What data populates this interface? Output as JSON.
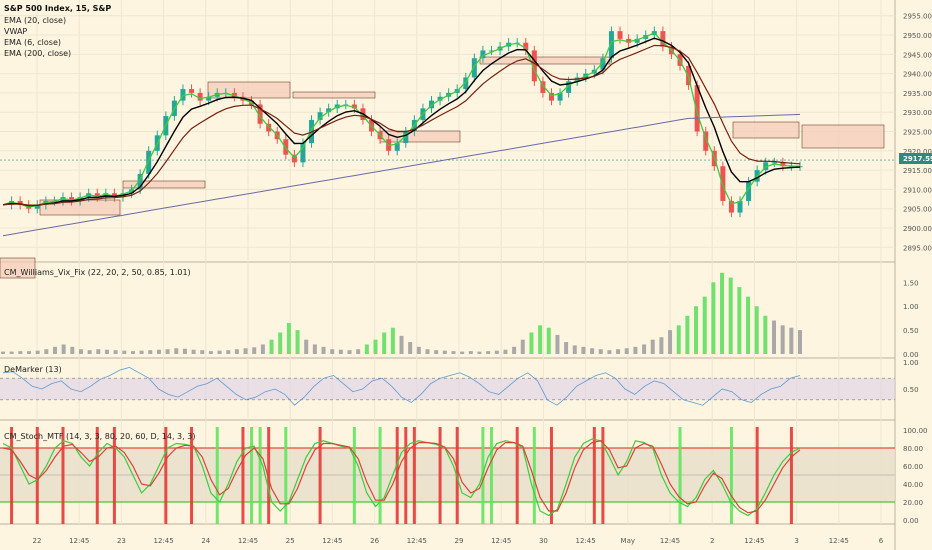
{
  "chart_title": "S&P 500 Index, 15, S&P",
  "price_panel": {
    "indicators": [
      "EMA (20, close)",
      "VWAP",
      "EMA (6, close)",
      "EMA (200, close)"
    ],
    "current_price_label": "2917.59",
    "y_ticks": [
      "2955.00",
      "2950.00",
      "2945.00",
      "2940.00",
      "2935.00",
      "2930.00",
      "2925.00",
      "2920.00",
      "2915.00",
      "2910.00",
      "2905.00",
      "2900.00",
      "2895.00"
    ],
    "colors": {
      "ema20": "#7a2010",
      "vwap": "#000000",
      "ema6": "#3ccc3c",
      "ema200": "#6a6aa8",
      "up": "#26a69a",
      "down": "#ef5350",
      "zone": "#f3cbb8"
    }
  },
  "vix_panel": {
    "title": "CM_Williams_Vix_Fix (22, 20, 2, 50, 0.85, 1.01)",
    "y_ticks": [
      "1.50",
      "1.00",
      "0.50",
      "0.00"
    ]
  },
  "demarker_panel": {
    "title": "DeMarker (13)",
    "y_ticks": [
      "1.00",
      "0.50"
    ]
  },
  "stoch_panel": {
    "title": "CM_Stoch_MTF (14, 3, 3, 80, 20, 60, D, 14, 3, 3)",
    "y_ticks": [
      "100.00",
      "80.00",
      "60.00",
      "40.00",
      "20.00",
      "0.00"
    ]
  },
  "x_axis_labels": [
    "22",
    "12:45",
    "23",
    "12:45",
    "24",
    "12:45",
    "25",
    "12:45",
    "26",
    "12:45",
    "29",
    "12:45",
    "30",
    "12:45",
    "May",
    "12:45",
    "2",
    "12:45",
    "3",
    "12:45",
    "6"
  ],
  "chart_data": [
    {
      "type": "candlestick",
      "title": "S&P 500 Index, 15, S&P",
      "ylim": [
        2893,
        2957
      ],
      "close_series": [
        2906,
        2907,
        2906,
        2905,
        2906,
        2907,
        2907,
        2908,
        2907,
        2908,
        2909,
        2908,
        2909,
        2908,
        2909,
        2910,
        2914,
        2920,
        2924,
        2929,
        2933,
        2936,
        2935,
        2933,
        2934,
        2935,
        2935,
        2934,
        2933,
        2932,
        2927,
        2925,
        2923,
        2919,
        2917,
        2922,
        2928,
        2930,
        2931,
        2932,
        2932,
        2931,
        2928,
        2925,
        2923,
        2920,
        2922,
        2925,
        2928,
        2931,
        2933,
        2934,
        2935,
        2936,
        2939,
        2944,
        2946,
        2946,
        2947,
        2948,
        2948,
        2946,
        2938,
        2935,
        2933,
        2935,
        2938,
        2939,
        2940,
        2941,
        2944,
        2951,
        2949,
        2948,
        2949,
        2950,
        2951,
        2947,
        2945,
        2942,
        2937,
        2925,
        2920,
        2916,
        2907,
        2904,
        2907,
        2912,
        2915,
        2917,
        2917,
        2916,
        2916,
        2916
      ]
    },
    {
      "type": "bar",
      "title": "CM_Williams_Vix_Fix (22, 20, 2, 50, 0.85, 1.01)",
      "ylim": [
        0,
        1.8
      ],
      "values": [
        0.05,
        0.05,
        0.06,
        0.06,
        0.07,
        0.1,
        0.15,
        0.2,
        0.15,
        0.1,
        0.08,
        0.1,
        0.09,
        0.08,
        0.07,
        0.06,
        0.07,
        0.08,
        0.09,
        0.1,
        0.12,
        0.11,
        0.09,
        0.08,
        0.06,
        0.07,
        0.08,
        0.1,
        0.12,
        0.14,
        0.2,
        0.3,
        0.45,
        0.65,
        0.5,
        0.3,
        0.2,
        0.15,
        0.1,
        0.09,
        0.08,
        0.1,
        0.2,
        0.3,
        0.45,
        0.55,
        0.38,
        0.25,
        0.15,
        0.1,
        0.08,
        0.07,
        0.06,
        0.05,
        0.06,
        0.05,
        0.06,
        0.07,
        0.09,
        0.15,
        0.3,
        0.45,
        0.6,
        0.55,
        0.4,
        0.25,
        0.18,
        0.15,
        0.12,
        0.1,
        0.08,
        0.1,
        0.12,
        0.15,
        0.2,
        0.3,
        0.35,
        0.5,
        0.6,
        0.8,
        1.0,
        1.2,
        1.5,
        1.7,
        1.6,
        1.4,
        1.2,
        1.0,
        0.8,
        0.7,
        0.6,
        0.55,
        0.5
      ],
      "highlight_green": [
        31,
        32,
        33,
        34,
        42,
        43,
        44,
        45,
        61,
        62,
        63,
        78,
        79,
        80,
        81,
        82,
        83,
        84,
        85,
        86,
        87,
        88
      ]
    },
    {
      "type": "line",
      "title": "DeMarker (13)",
      "ylim": [
        0,
        1
      ],
      "bands": [
        0.3,
        0.7
      ],
      "values": [
        0.8,
        0.82,
        0.7,
        0.55,
        0.5,
        0.6,
        0.65,
        0.5,
        0.45,
        0.55,
        0.68,
        0.75,
        0.85,
        0.9,
        0.8,
        0.7,
        0.5,
        0.4,
        0.35,
        0.45,
        0.55,
        0.6,
        0.7,
        0.55,
        0.4,
        0.3,
        0.35,
        0.45,
        0.5,
        0.4,
        0.2,
        0.35,
        0.55,
        0.7,
        0.75,
        0.6,
        0.45,
        0.5,
        0.65,
        0.7,
        0.55,
        0.35,
        0.25,
        0.4,
        0.6,
        0.7,
        0.75,
        0.8,
        0.72,
        0.6,
        0.45,
        0.4,
        0.55,
        0.7,
        0.8,
        0.65,
        0.3,
        0.2,
        0.35,
        0.55,
        0.65,
        0.75,
        0.8,
        0.7,
        0.5,
        0.4,
        0.55,
        0.65,
        0.6,
        0.45,
        0.3,
        0.25,
        0.2,
        0.35,
        0.5,
        0.45,
        0.3,
        0.25,
        0.4,
        0.5,
        0.55,
        0.7,
        0.75
      ]
    },
    {
      "type": "line",
      "title": "CM_Stoch_MTF (14, 3, 3, 80, 20, 60, D, 14, 3, 3)",
      "ylim": [
        0,
        100
      ],
      "bands": [
        20,
        80
      ],
      "series": [
        {
          "values": [
            85,
            80,
            60,
            40,
            45,
            60,
            80,
            88,
            85,
            70,
            60,
            75,
            85,
            80,
            70,
            50,
            30,
            40,
            60,
            80,
            85,
            84,
            82,
            60,
            30,
            20,
            40,
            65,
            80,
            82,
            60,
            20,
            10,
            20,
            45,
            70,
            85,
            88,
            85,
            82,
            80,
            60,
            30,
            15,
            25,
            50,
            75,
            85,
            88,
            86,
            84,
            80,
            60,
            30,
            25,
            40,
            70,
            85,
            88,
            86,
            80,
            40,
            10,
            5,
            12,
            40,
            70,
            85,
            90,
            88,
            70,
            50,
            65,
            88,
            86,
            80,
            50,
            30,
            20,
            15,
            25,
            45,
            55,
            40,
            20,
            10,
            5,
            12,
            30,
            50,
            65,
            75,
            80
          ]
        },
        {
          "values": [
            80,
            78,
            65,
            50,
            45,
            55,
            70,
            82,
            84,
            75,
            65,
            70,
            80,
            82,
            75,
            60,
            40,
            38,
            52,
            70,
            80,
            83,
            82,
            70,
            45,
            28,
            35,
            55,
            72,
            80,
            68,
            35,
            18,
            18,
            35,
            60,
            78,
            85,
            85,
            83,
            81,
            68,
            42,
            22,
            22,
            40,
            65,
            80,
            86,
            86,
            85,
            81,
            68,
            42,
            30,
            35,
            58,
            78,
            86,
            86,
            82,
            55,
            25,
            10,
            10,
            30,
            58,
            78,
            86,
            88,
            78,
            58,
            60,
            80,
            85,
            82,
            62,
            40,
            26,
            18,
            20,
            38,
            52,
            46,
            28,
            14,
            8,
            10,
            22,
            40,
            58,
            70,
            78
          ]
        }
      ],
      "signal_bars": [
        {
          "index": 1,
          "color": "red"
        },
        {
          "index": 4,
          "color": "red"
        },
        {
          "index": 7,
          "color": "red"
        },
        {
          "index": 11,
          "color": "red"
        },
        {
          "index": 13,
          "color": "red"
        },
        {
          "index": 19,
          "color": "red"
        },
        {
          "index": 22,
          "color": "red"
        },
        {
          "index": 25,
          "color": "green"
        },
        {
          "index": 28,
          "color": "red"
        },
        {
          "index": 29,
          "color": "green"
        },
        {
          "index": 30,
          "color": "green"
        },
        {
          "index": 31,
          "color": "red"
        },
        {
          "index": 33,
          "color": "green"
        },
        {
          "index": 37,
          "color": "red"
        },
        {
          "index": 41,
          "color": "green"
        },
        {
          "index": 44,
          "color": "green"
        },
        {
          "index": 46,
          "color": "red"
        },
        {
          "index": 47,
          "color": "red"
        },
        {
          "index": 48,
          "color": "red"
        },
        {
          "index": 51,
          "color": "red"
        },
        {
          "index": 53,
          "color": "red"
        },
        {
          "index": 56,
          "color": "green"
        },
        {
          "index": 57,
          "color": "green"
        },
        {
          "index": 60,
          "color": "red"
        },
        {
          "index": 62,
          "color": "green"
        },
        {
          "index": 64,
          "color": "red"
        },
        {
          "index": 69,
          "color": "red"
        },
        {
          "index": 70,
          "color": "red"
        },
        {
          "index": 79,
          "color": "green"
        },
        {
          "index": 85,
          "color": "green"
        },
        {
          "index": 88,
          "color": "red"
        },
        {
          "index": 92,
          "color": "red"
        }
      ]
    }
  ]
}
